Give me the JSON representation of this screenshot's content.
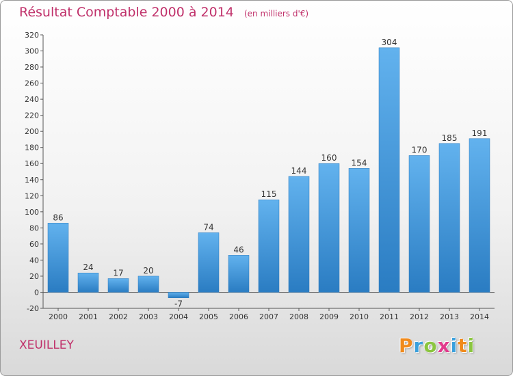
{
  "chart_data": {
    "type": "bar",
    "title": "Résultat Comptable 2000 à 2014",
    "subtitle": "(en milliers d'€)",
    "categories": [
      "2000",
      "2001",
      "2002",
      "2003",
      "2004",
      "2005",
      "2006",
      "2007",
      "2008",
      "2009",
      "2010",
      "2011",
      "2012",
      "2013",
      "2014"
    ],
    "values": [
      86,
      24,
      17,
      20,
      -7,
      74,
      46,
      115,
      144,
      160,
      154,
      304,
      170,
      185,
      191
    ],
    "ylim": [
      -20,
      320
    ],
    "yticks": [
      -20,
      0,
      20,
      40,
      60,
      80,
      100,
      120,
      140,
      160,
      180,
      200,
      220,
      240,
      260,
      280,
      300,
      320
    ],
    "grid": false,
    "legend": "none",
    "bar_color": "#3a94d8"
  },
  "commune": "XEUILLEY",
  "logo": {
    "letters": [
      "P",
      "r",
      "o",
      "x",
      "i",
      "t",
      "i"
    ],
    "colors": [
      "#f08a1c",
      "#3aa0dc",
      "#8bc53f",
      "#e23a8c",
      "#3aa0dc",
      "#f08a1c",
      "#8bc53f"
    ]
  }
}
